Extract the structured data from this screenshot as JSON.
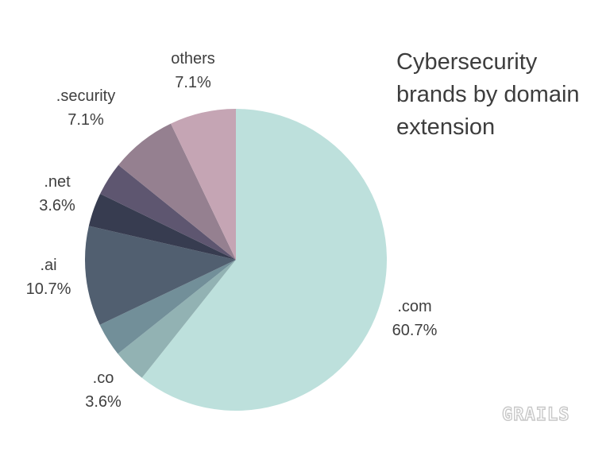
{
  "title_lines": [
    "Cybersecurity",
    "brands by domain",
    "extension"
  ],
  "logo_text": "GRAILS",
  "chart_data": {
    "type": "pie",
    "title": "Cybersecurity brands by domain extension",
    "start": "top, clockwise",
    "slices": [
      {
        "label": ".com",
        "value": 60.7,
        "value_label": "60.7%",
        "color": "#bde0dc"
      },
      {
        "label": "",
        "value": 3.6,
        "value_label": "",
        "color": "#92b2b3"
      },
      {
        "label": ".co",
        "value": 3.6,
        "value_label": "3.6%",
        "color": "#728f99"
      },
      {
        "label": ".ai",
        "value": 10.7,
        "value_label": "10.7%",
        "color": "#515f70"
      },
      {
        "label": ".net",
        "value": 3.6,
        "value_label": "3.6%",
        "color": "#373c50"
      },
      {
        "label": "",
        "value": 3.6,
        "value_label": "",
        "color": "#5e5670"
      },
      {
        "label": ".security",
        "value": 7.1,
        "value_label": "7.1%",
        "color": "#958090"
      },
      {
        "label": "others",
        "value": 7.1,
        "value_label": "7.1%",
        "color": "#c5a5b4"
      }
    ]
  }
}
